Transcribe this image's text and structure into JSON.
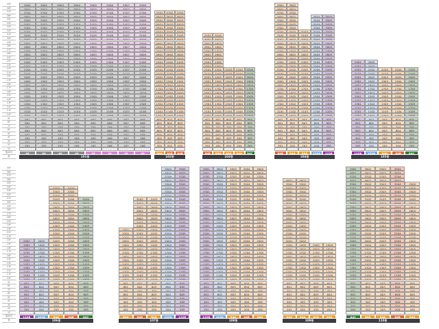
{
  "floor_labels": [
    "39F",
    "38F",
    "37F",
    "36F",
    "35F",
    "34F",
    "33F",
    "32F",
    "31F",
    "30F",
    "29F",
    "28F",
    "27F",
    "26F",
    "25F",
    "24F",
    "23F",
    "22F",
    "21F",
    "20F",
    "19F",
    "18F",
    "17F",
    "16F",
    "15F",
    "14F",
    "13F",
    "12F",
    "11F",
    "10F",
    "9F",
    "8F",
    "7F",
    "6F",
    "5F",
    "4F",
    "3F",
    "2F",
    "1F",
    "필로티",
    "동"
  ],
  "fills": {
    "peach": "#fbdcbd",
    "gray": "#d6d6d6",
    "pink": "#ecd3ea",
    "blue": "#d3def0",
    "purple": "#dac6e4",
    "green": "#c6d4be",
    "salmon": "#f7c9b6"
  },
  "type_colors": {
    "49": "#8a8a8a",
    "49P": "#d77fcf",
    "84A": "#f29a1e",
    "84B": "#e8622a",
    "84C": "#2f7d32",
    "122A": "#6fa8dc",
    "122B": "#9a2ba6"
  },
  "sections": [
    {
      "buildings": [
        {
          "name": "101동",
          "columns": [
            {
              "line": "01",
              "type": "49",
              "fill": "gray",
              "top": 39
            },
            {
              "line": "02",
              "type": "49",
              "fill": "gray",
              "top": 39
            },
            {
              "line": "03",
              "type": "49",
              "fill": "gray",
              "top": 39
            },
            {
              "line": "04",
              "type": "49",
              "fill": "gray",
              "top": 39
            },
            {
              "line": "05",
              "type": "49",
              "type_color": "49P",
              "fill": "gray",
              "hi_fill": "pink",
              "hi_from": 24,
              "top": 39
            },
            {
              "line": "06",
              "type": "49",
              "type_color": "49P",
              "fill": "gray",
              "hi_fill": "pink",
              "hi_from": 24,
              "top": 39
            },
            {
              "line": "07",
              "type": "49",
              "type_color": "49P",
              "fill": "gray",
              "hi_fill": "pink",
              "hi_from": 24,
              "top": 39
            },
            {
              "line": "08",
              "type": "49",
              "type_color": "49P",
              "fill": "gray",
              "hi_fill": "pink",
              "hi_from": 24,
              "top": 39
            }
          ]
        },
        {
          "name": "102동",
          "columns": [
            {
              "line": "01",
              "type": "84A",
              "fill": "peach",
              "top": 37
            },
            {
              "line": "02",
              "type": "84B",
              "fill": "peach",
              "top": 37
            },
            {
              "line": "03",
              "type": "84B",
              "fill": "peach",
              "top": 37
            }
          ]
        },
        {
          "name": "103동",
          "columns": [
            {
              "line": "01",
              "type": "84B",
              "fill": "peach",
              "top": 31
            },
            {
              "line": "02",
              "type": "84A",
              "fill": "peach",
              "top": 31
            },
            {
              "line": "03",
              "type": "84A",
              "fill": "peach",
              "top": 22
            },
            {
              "line": "04",
              "type": "84A",
              "fill": "peach",
              "top": 22
            },
            {
              "line": "05",
              "type": "84C",
              "fill": "green",
              "top": 22
            }
          ]
        },
        {
          "name": "104동",
          "columns": [
            {
              "line": "01",
              "type": "84B",
              "fill": "peach",
              "top": 39
            },
            {
              "line": "02",
              "type": "84A",
              "fill": "peach",
              "top": 39
            },
            {
              "line": "03",
              "type": "84A",
              "fill": "peach",
              "top": 32
            },
            {
              "line": "04",
              "type": "122A",
              "fill": "blue",
              "top": 36
            },
            {
              "line": "05",
              "type": "122B",
              "fill": "purple",
              "top": 36
            }
          ]
        },
        {
          "name": "105동",
          "columns": [
            {
              "line": "01",
              "type": "122B",
              "fill": "purple",
              "top": 24
            },
            {
              "line": "02",
              "type": "122A",
              "fill": "blue",
              "top": 24
            },
            {
              "line": "03",
              "type": "84A",
              "fill": "peach",
              "top": 22
            },
            {
              "line": "04",
              "type": "84B",
              "fill": "peach",
              "top": 22
            },
            {
              "line": "05",
              "type": "84C",
              "fill": "green",
              "top": 22
            }
          ]
        }
      ]
    },
    {
      "buildings": [
        {
          "name": "106동",
          "columns": [
            {
              "line": "01",
              "type": "122B",
              "fill": "purple",
              "top": 20
            },
            {
              "line": "02",
              "type": "122A",
              "fill": "blue",
              "top": 20
            },
            {
              "line": "03",
              "type": "84A",
              "fill": "peach",
              "top": 34
            },
            {
              "line": "04",
              "type": "84B",
              "fill": "peach",
              "top": 34
            },
            {
              "line": "05",
              "type": "84C",
              "fill": "green",
              "top": 31
            }
          ]
        },
        {
          "name": "107동",
          "columns": [
            {
              "line": "01",
              "type": "84A",
              "fill": "peach",
              "top": 23
            },
            {
              "line": "02",
              "type": "84B",
              "fill": "peach",
              "top": 31
            },
            {
              "line": "03",
              "type": "84A",
              "fill": "peach",
              "top": 31
            },
            {
              "line": "04",
              "type": "122A",
              "fill": "blue",
              "top": 39
            },
            {
              "line": "05",
              "type": "122B",
              "fill": "purple",
              "top": 39
            }
          ]
        },
        {
          "name": "108동",
          "columns": [
            {
              "line": "01",
              "type": "122B",
              "fill": "purple",
              "top": 39
            },
            {
              "line": "02",
              "type": "122A",
              "fill": "blue",
              "top": 39
            },
            {
              "line": "03",
              "type": "84A",
              "fill": "peach",
              "top": 39
            },
            {
              "line": "04",
              "type": "84B",
              "fill": "peach",
              "top": 39
            },
            {
              "line": "05",
              "type": "84A",
              "fill": "peach",
              "top": 39
            }
          ]
        },
        {
          "name": "109동",
          "columns": [
            {
              "line": "01",
              "type": "84A",
              "fill": "peach",
              "top": 36
            },
            {
              "line": "02",
              "type": "84A",
              "fill": "peach",
              "top": 36
            },
            {
              "line": "03",
              "type": "84A",
              "fill": "peach",
              "top": 19
            },
            {
              "line": "04",
              "type": "84A",
              "fill": "peach",
              "top": 19
            }
          ]
        },
        {
          "name": "110동",
          "columns": [
            {
              "line": "01",
              "type": "84C",
              "fill": "green",
              "top": 39
            },
            {
              "line": "02",
              "type": "84A",
              "fill": "peach",
              "top": 39
            },
            {
              "line": "03",
              "type": "84A",
              "fill": "peach",
              "top": 39
            },
            {
              "line": "04",
              "type": "84B",
              "fill": "salmon",
              "top": 39
            },
            {
              "line": "05",
              "type": "84A",
              "fill": "peach",
              "top": 35
            }
          ]
        }
      ]
    }
  ]
}
